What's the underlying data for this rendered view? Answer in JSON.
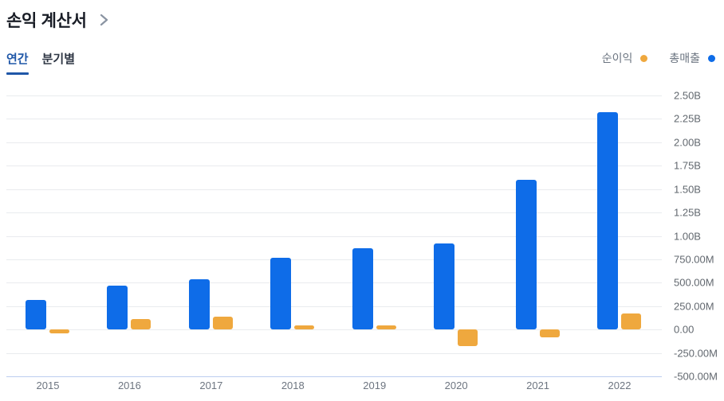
{
  "header": {
    "title": "손익 계산서",
    "chevron_icon": "chevron-right"
  },
  "tabs": [
    {
      "label": "연간",
      "active": true
    },
    {
      "label": "분기별",
      "active": false
    }
  ],
  "legend": [
    {
      "label": "순이익",
      "color": "#efa83e"
    },
    {
      "label": "총매출",
      "color": "#0e6ce8"
    }
  ],
  "chart_data": {
    "type": "bar",
    "title": "손익 계산서",
    "categories": [
      "2015",
      "2016",
      "2017",
      "2018",
      "2019",
      "2020",
      "2021",
      "2022"
    ],
    "series": [
      {
        "name": "총매출",
        "color": "#0e6ce8",
        "values": [
          320000000,
          465000000,
          540000000,
          770000000,
          870000000,
          920000000,
          1600000000,
          2320000000
        ]
      },
      {
        "name": "순이익",
        "color": "#efa83e",
        "values": [
          -40000000,
          110000000,
          140000000,
          45000000,
          40000000,
          -180000000,
          -85000000,
          170000000
        ]
      }
    ],
    "y_axis": {
      "side": "right",
      "min": -500000000,
      "max": 2500000000,
      "tick_step": 250000000,
      "tick_labels": [
        "2.50B",
        "2.25B",
        "2.00B",
        "1.75B",
        "1.50B",
        "1.25B",
        "1.00B",
        "750.00M",
        "500.00M",
        "250.00M",
        "0.00",
        "-250.00M",
        "-500.00M"
      ]
    },
    "grid": true,
    "legend_position": "top-right"
  },
  "colors": {
    "grid": "#e9ebee",
    "baseline": "#bccdf0",
    "axis_text": "#62686f",
    "tab_active": "#1f57a8",
    "tab_inactive": "#2e3644",
    "legend_text": "#6b7480",
    "title_text": "#191d26",
    "chevron": "#8a94a2"
  }
}
